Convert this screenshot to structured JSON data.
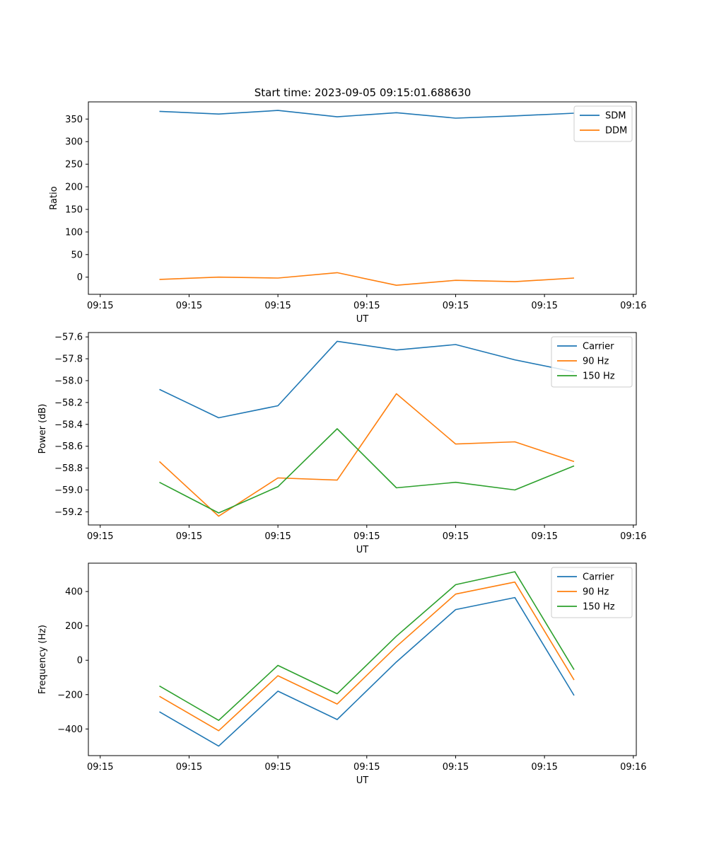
{
  "figure_title": "Start time: 2023-09-05 09:15:01.688630",
  "colors": {
    "blue": "#1f77b4",
    "orange": "#ff7f0e",
    "green": "#2ca02c"
  },
  "chart_data": [
    {
      "type": "line",
      "name": "ratio",
      "xlabel": "UT",
      "ylabel": "Ratio",
      "x_tick_labels": [
        "09:15",
        "09:15",
        "09:15",
        "09:15",
        "09:15",
        "09:15",
        "09:16"
      ],
      "x_points": [
        1,
        2,
        3,
        4,
        5,
        6,
        7,
        8
      ],
      "xlim": [
        -0.2,
        9.05
      ],
      "ylim": [
        -38,
        388
      ],
      "yticks": [
        0,
        50,
        100,
        150,
        200,
        250,
        300,
        350
      ],
      "legend_position": "top-right",
      "series": [
        {
          "name": "SDM",
          "color": "#1f77b4",
          "values": [
            367,
            361,
            369,
            355,
            364,
            352,
            357,
            363
          ]
        },
        {
          "name": "DDM",
          "color": "#ff7f0e",
          "values": [
            -5,
            0,
            -2,
            10,
            -18,
            -7,
            -10,
            -2
          ]
        }
      ]
    },
    {
      "type": "line",
      "name": "power",
      "xlabel": "UT",
      "ylabel": "Power (dB)",
      "x_tick_labels": [
        "09:15",
        "09:15",
        "09:15",
        "09:15",
        "09:15",
        "09:15",
        "09:16"
      ],
      "x_points": [
        1,
        2,
        3,
        4,
        5,
        6,
        7,
        8
      ],
      "xlim": [
        -0.2,
        9.05
      ],
      "ylim": [
        -59.32,
        -57.56
      ],
      "yticks": [
        -59.2,
        -59.0,
        -58.8,
        -58.6,
        -58.4,
        -58.2,
        -58.0,
        -57.8,
        -57.6
      ],
      "ytick_labels": [
        "−59.2",
        "−59.0",
        "−58.8",
        "−58.6",
        "−58.4",
        "−58.2",
        "−58.0",
        "−57.8",
        "−57.6"
      ],
      "legend_position": "top-right",
      "series": [
        {
          "name": "Carrier",
          "color": "#1f77b4",
          "values": [
            -58.08,
            -58.34,
            -58.23,
            -57.64,
            -57.72,
            -57.67,
            -57.81,
            -57.92
          ]
        },
        {
          "name": "90 Hz",
          "color": "#ff7f0e",
          "values": [
            -58.74,
            -59.24,
            -58.89,
            -58.91,
            -58.12,
            -58.58,
            -58.56,
            -58.74
          ]
        },
        {
          "name": "150 Hz",
          "color": "#2ca02c",
          "values": [
            -58.93,
            -59.21,
            -58.97,
            -58.44,
            -58.98,
            -58.93,
            -59.0,
            -58.78
          ]
        }
      ]
    },
    {
      "type": "line",
      "name": "frequency",
      "xlabel": "UT",
      "ylabel": "Frequency (Hz)",
      "x_tick_labels": [
        "09:15",
        "09:15",
        "09:15",
        "09:15",
        "09:15",
        "09:15",
        "09:16"
      ],
      "x_points": [
        1,
        2,
        3,
        4,
        5,
        6,
        7,
        8
      ],
      "xlim": [
        -0.2,
        9.05
      ],
      "ylim": [
        -555,
        565
      ],
      "yticks": [
        -400,
        -200,
        0,
        200,
        400
      ],
      "ytick_labels": [
        "−400",
        "−200",
        "0",
        "200",
        "400"
      ],
      "legend_position": "top-right",
      "series": [
        {
          "name": "Carrier",
          "color": "#1f77b4",
          "values": [
            -300,
            -500,
            -180,
            -345,
            -10,
            295,
            365,
            -205
          ]
        },
        {
          "name": "90 Hz",
          "color": "#ff7f0e",
          "values": [
            -210,
            -410,
            -90,
            -255,
            80,
            385,
            455,
            -115
          ]
        },
        {
          "name": "150 Hz",
          "color": "#2ca02c",
          "values": [
            -150,
            -350,
            -30,
            -195,
            140,
            440,
            515,
            -55
          ]
        }
      ]
    }
  ]
}
